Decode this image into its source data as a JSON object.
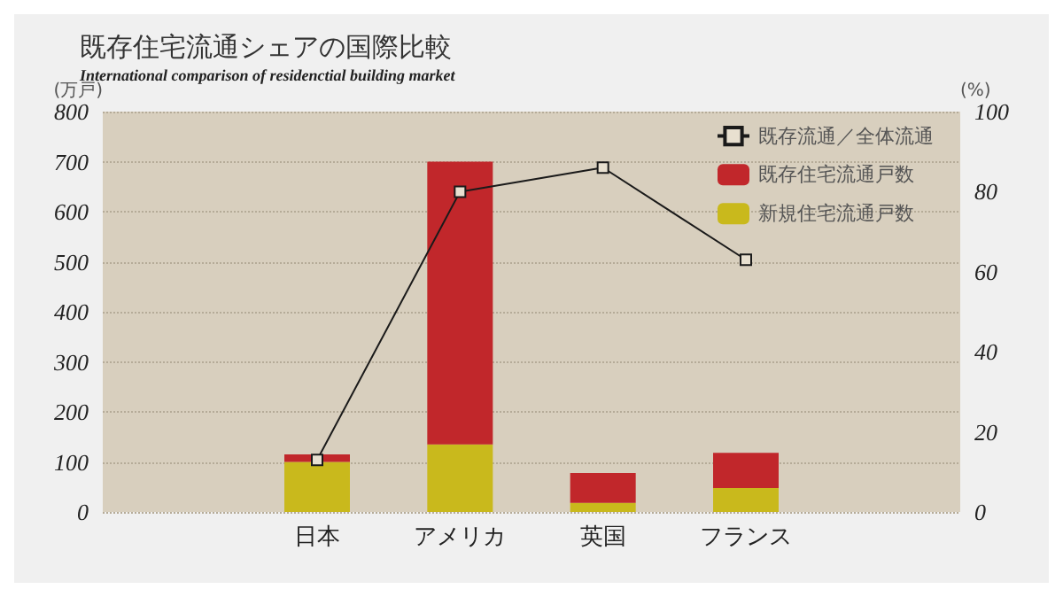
{
  "chart_data": {
    "type": "bar",
    "title": "既存住宅流通シェアの国際比較",
    "subtitle": "International comparison of residenctial building market",
    "categories": [
      null,
      "日本",
      "アメリカ",
      "英国",
      "フランス",
      null
    ],
    "stacked": true,
    "ylabel": "(万戸)",
    "y2label": "(%)",
    "ylim": [
      0,
      800
    ],
    "yticks": [
      0,
      100,
      200,
      300,
      400,
      500,
      600,
      700,
      800
    ],
    "y2lim": [
      0,
      100
    ],
    "y2ticks": [
      0,
      20,
      40,
      60,
      80,
      100
    ],
    "grid": "y",
    "legend": "top right",
    "series": [
      {
        "name": "新規住宅流通戸数",
        "color": "#c9b91c",
        "values": [
          null,
          100,
          135,
          18,
          48,
          null
        ]
      },
      {
        "name": "既存住宅流通戸数",
        "color": "#c1272b",
        "values": [
          null,
          15,
          565,
          60,
          70,
          null
        ]
      },
      {
        "name": "既存流通／全体流通",
        "type": "line",
        "axis": "y2",
        "color": "#1a1a1a",
        "marker": "square",
        "values": [
          null,
          13,
          80,
          86,
          63,
          null
        ]
      }
    ]
  }
}
